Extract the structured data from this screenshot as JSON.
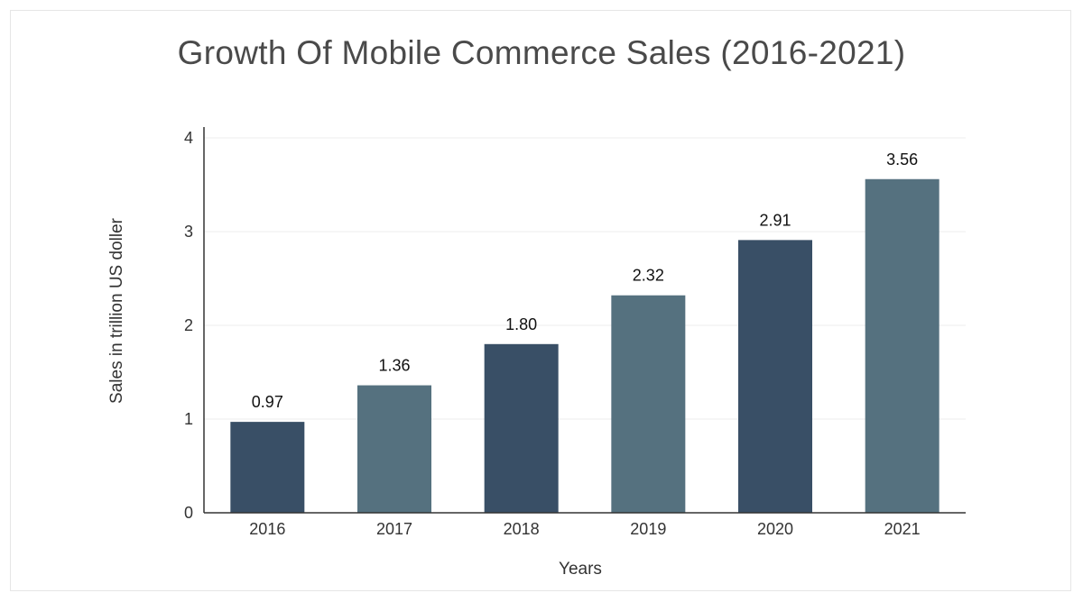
{
  "chart_data": {
    "type": "bar",
    "title": "Growth Of Mobile Commerce Sales (2016-2021)",
    "xlabel": "Years",
    "ylabel": "Sales in trillion US doller",
    "categories": [
      "2016",
      "2017",
      "2018",
      "2019",
      "2020",
      "2021"
    ],
    "values": [
      0.97,
      1.36,
      1.8,
      2.32,
      2.91,
      3.56
    ],
    "value_labels": [
      "0.97",
      "1.36",
      "1.80",
      "2.32",
      "2.91",
      "3.56"
    ],
    "ylim": [
      0,
      4
    ],
    "yticks": [
      "0",
      "1",
      "2",
      "3",
      "4"
    ],
    "grid": true,
    "colors": [
      "#394f66",
      "#55717f"
    ]
  }
}
